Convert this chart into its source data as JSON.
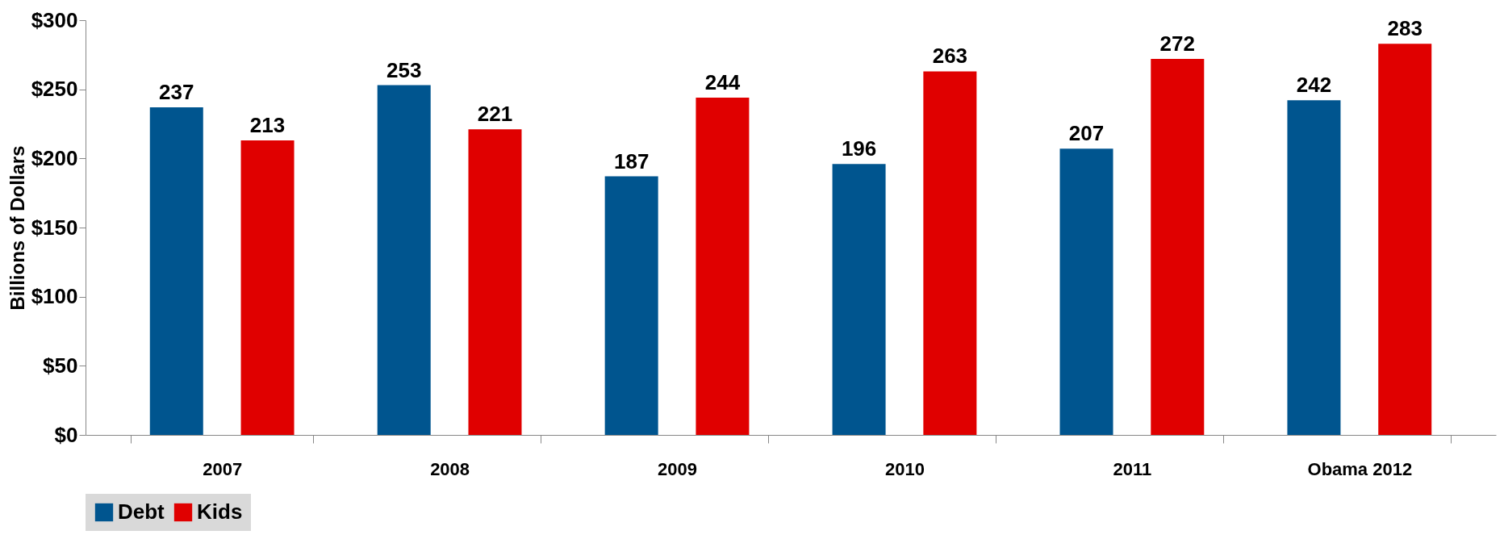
{
  "chart_data": {
    "type": "bar",
    "ylabel": "Billions of Dollars",
    "categories": [
      "2007",
      "2008",
      "2009",
      "2010",
      "2011",
      "Obama 2012"
    ],
    "series": [
      {
        "name": "Debt",
        "color": "#00558f",
        "values": [
          237,
          253,
          187,
          196,
          207,
          242
        ]
      },
      {
        "name": "Kids",
        "color": "#e00000",
        "values": [
          213,
          221,
          244,
          263,
          272,
          283
        ]
      }
    ],
    "ylim": [
      0,
      300
    ],
    "yticks": [
      {
        "value": 0,
        "label": "$0"
      },
      {
        "value": 50,
        "label": "$50"
      },
      {
        "value": 100,
        "label": "$100"
      },
      {
        "value": 150,
        "label": "$150"
      },
      {
        "value": 200,
        "label": "$200"
      },
      {
        "value": 250,
        "label": "$250"
      },
      {
        "value": 300,
        "label": "$300"
      }
    ],
    "data_labels": true,
    "grid": false,
    "legend": "bottom"
  }
}
